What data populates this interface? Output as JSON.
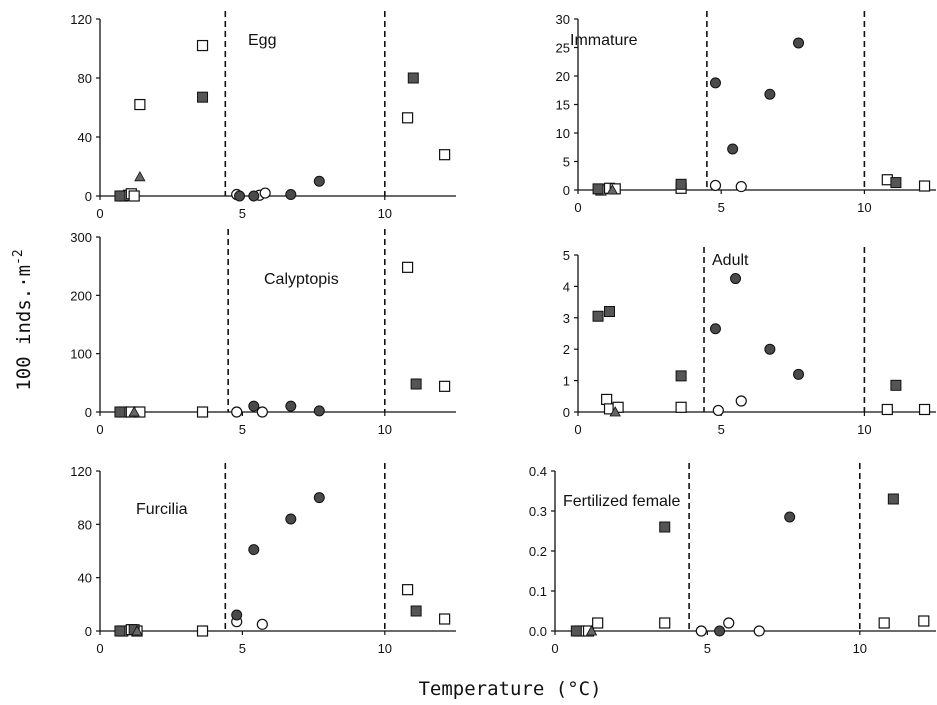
{
  "figure": {
    "ylabel": "100 inds.·m",
    "ylabel_sup": "-2",
    "xlabel": "Temperature (°C)"
  },
  "chart_data": [
    {
      "type": "scatter",
      "title": "Egg",
      "xlim": [
        0,
        12.5
      ],
      "ylim": [
        0,
        120
      ],
      "yticks": [
        0,
        40,
        80,
        120
      ],
      "xticks": [
        0,
        5,
        10
      ],
      "dashed_lines_x": [
        4.4,
        10.0
      ],
      "series": [
        {
          "marker": "open-square",
          "points": [
            [
              0.8,
              0
            ],
            [
              1.0,
              0.5
            ],
            [
              1.1,
              1.5
            ],
            [
              1.2,
              0
            ],
            [
              1.4,
              62
            ],
            [
              3.6,
              102
            ],
            [
              10.8,
              53
            ],
            [
              12.1,
              28
            ]
          ]
        },
        {
          "marker": "filled-square",
          "points": [
            [
              0.7,
              0
            ],
            [
              3.6,
              67
            ],
            [
              11.0,
              80
            ]
          ]
        },
        {
          "marker": "filled-triangle",
          "points": [
            [
              1.4,
              13
            ]
          ]
        },
        {
          "marker": "open-circle",
          "points": [
            [
              4.8,
              1
            ],
            [
              5.6,
              0.5
            ],
            [
              5.8,
              2
            ]
          ]
        },
        {
          "marker": "filled-circle",
          "points": [
            [
              4.9,
              0
            ],
            [
              5.4,
              0
            ],
            [
              6.7,
              1
            ],
            [
              7.7,
              10
            ]
          ]
        }
      ]
    },
    {
      "type": "scatter",
      "title": "Immature",
      "xlim": [
        0,
        12.5
      ],
      "ylim": [
        0,
        30
      ],
      "yticks": [
        0,
        5,
        10,
        15,
        20,
        25,
        30
      ],
      "xticks": [
        0,
        5,
        10
      ],
      "dashed_lines_x": [
        4.5,
        10.0
      ],
      "series": [
        {
          "marker": "open-square",
          "points": [
            [
              0.8,
              0
            ],
            [
              1.1,
              0.3
            ],
            [
              1.3,
              0.2
            ],
            [
              3.6,
              0.3
            ],
            [
              10.8,
              1.8
            ],
            [
              12.1,
              0.7
            ]
          ]
        },
        {
          "marker": "filled-square",
          "points": [
            [
              0.7,
              0.2
            ],
            [
              3.6,
              1.0
            ],
            [
              11.1,
              1.3
            ]
          ]
        },
        {
          "marker": "filled-triangle",
          "points": [
            [
              1.2,
              0
            ]
          ]
        },
        {
          "marker": "open-circle",
          "points": [
            [
              4.8,
              0.8
            ],
            [
              5.7,
              0.6
            ]
          ]
        },
        {
          "marker": "filled-circle",
          "points": [
            [
              4.8,
              18.8
            ],
            [
              5.4,
              7.2
            ],
            [
              6.7,
              16.8
            ],
            [
              7.7,
              25.8
            ]
          ]
        }
      ]
    },
    {
      "type": "scatter",
      "title": "Calyptopis",
      "xlim": [
        0,
        12.5
      ],
      "ylim": [
        0,
        300
      ],
      "yticks": [
        0,
        100,
        200,
        300
      ],
      "xticks": [
        0,
        5,
        10
      ],
      "dashed_lines_x": [
        4.5,
        10.0
      ],
      "series": [
        {
          "marker": "open-square",
          "points": [
            [
              0.8,
              0
            ],
            [
              1.1,
              0
            ],
            [
              1.4,
              0
            ],
            [
              3.6,
              0
            ],
            [
              10.8,
              248
            ],
            [
              12.1,
              44
            ]
          ]
        },
        {
          "marker": "filled-square",
          "points": [
            [
              0.7,
              0
            ],
            [
              11.1,
              48
            ]
          ]
        },
        {
          "marker": "filled-triangle",
          "points": [
            [
              1.2,
              0
            ]
          ]
        },
        {
          "marker": "open-circle",
          "points": [
            [
              4.8,
              0
            ],
            [
              5.7,
              0
            ]
          ]
        },
        {
          "marker": "filled-circle",
          "points": [
            [
              5.4,
              10
            ],
            [
              6.7,
              10
            ],
            [
              7.7,
              2
            ]
          ]
        }
      ]
    },
    {
      "type": "scatter",
      "title": "Adult",
      "xlim": [
        0,
        12.5
      ],
      "ylim": [
        0,
        5
      ],
      "yticks": [
        0,
        1,
        2,
        3,
        4,
        5
      ],
      "xticks": [
        0,
        5,
        10
      ],
      "dashed_lines_x": [
        4.4,
        10.0
      ],
      "series": [
        {
          "marker": "open-square",
          "points": [
            [
              1.0,
              0.4
            ],
            [
              1.1,
              0.1
            ],
            [
              1.4,
              0.15
            ],
            [
              3.6,
              0.15
            ],
            [
              10.8,
              0.08
            ],
            [
              12.1,
              0.08
            ]
          ]
        },
        {
          "marker": "filled-square",
          "points": [
            [
              0.7,
              3.05
            ],
            [
              1.1,
              3.2
            ],
            [
              3.6,
              1.15
            ],
            [
              11.1,
              0.85
            ]
          ]
        },
        {
          "marker": "filled-triangle",
          "points": [
            [
              1.3,
              0
            ]
          ]
        },
        {
          "marker": "open-circle",
          "points": [
            [
              4.9,
              0.05
            ],
            [
              5.7,
              0.35
            ]
          ]
        },
        {
          "marker": "filled-circle",
          "points": [
            [
              4.8,
              2.65
            ],
            [
              5.5,
              4.25
            ],
            [
              6.7,
              2.0
            ],
            [
              7.7,
              1.2
            ]
          ]
        }
      ]
    },
    {
      "type": "scatter",
      "title": "Furcilia",
      "xlim": [
        0,
        12.5
      ],
      "ylim": [
        0,
        120
      ],
      "yticks": [
        0,
        40,
        80,
        120
      ],
      "xticks": [
        0,
        5,
        10
      ],
      "dashed_lines_x": [
        4.4,
        10.0
      ],
      "series": [
        {
          "marker": "open-square",
          "points": [
            [
              0.8,
              0
            ],
            [
              1.1,
              1
            ],
            [
              1.3,
              0
            ],
            [
              3.6,
              0
            ],
            [
              10.8,
              31
            ],
            [
              12.1,
              9
            ]
          ]
        },
        {
          "marker": "filled-square",
          "points": [
            [
              0.7,
              0
            ],
            [
              1.2,
              1
            ],
            [
              11.1,
              15
            ]
          ]
        },
        {
          "marker": "filled-triangle",
          "points": [
            [
              1.3,
              0
            ]
          ]
        },
        {
          "marker": "open-circle",
          "points": [
            [
              4.8,
              7
            ],
            [
              5.7,
              5
            ]
          ]
        },
        {
          "marker": "filled-circle",
          "points": [
            [
              4.8,
              12
            ],
            [
              5.4,
              61
            ],
            [
              6.7,
              84
            ],
            [
              7.7,
              100
            ]
          ]
        }
      ]
    },
    {
      "type": "scatter",
      "title": "Fertilized female",
      "xlim": [
        0,
        12.5
      ],
      "ylim": [
        0,
        0.4
      ],
      "yticks": [
        "0.0",
        "0.1",
        "0.2",
        "0.3",
        "0.4"
      ],
      "xticks": [
        0,
        5,
        10
      ],
      "dashed_lines_x": [
        4.4,
        10.0
      ],
      "series": [
        {
          "marker": "open-square",
          "points": [
            [
              0.8,
              0
            ],
            [
              1.1,
              0
            ],
            [
              1.4,
              0.02
            ],
            [
              3.6,
              0.02
            ],
            [
              10.8,
              0.02
            ],
            [
              12.1,
              0.025
            ]
          ]
        },
        {
          "marker": "filled-square",
          "points": [
            [
              0.7,
              0
            ],
            [
              3.6,
              0.26
            ],
            [
              11.1,
              0.33
            ]
          ]
        },
        {
          "marker": "filled-triangle",
          "points": [
            [
              1.2,
              0
            ]
          ]
        },
        {
          "marker": "open-circle",
          "points": [
            [
              4.8,
              0
            ],
            [
              5.7,
              0.02
            ],
            [
              6.7,
              0
            ]
          ]
        },
        {
          "marker": "filled-circle",
          "points": [
            [
              5.4,
              0
            ],
            [
              7.7,
              0.285
            ]
          ]
        }
      ]
    }
  ],
  "colors": {
    "axis": "#111111",
    "filled_square": "#555555",
    "filled_circle": "#4a4a4a",
    "filled_triangle": "#666666",
    "open_fill": "#ffffff"
  }
}
